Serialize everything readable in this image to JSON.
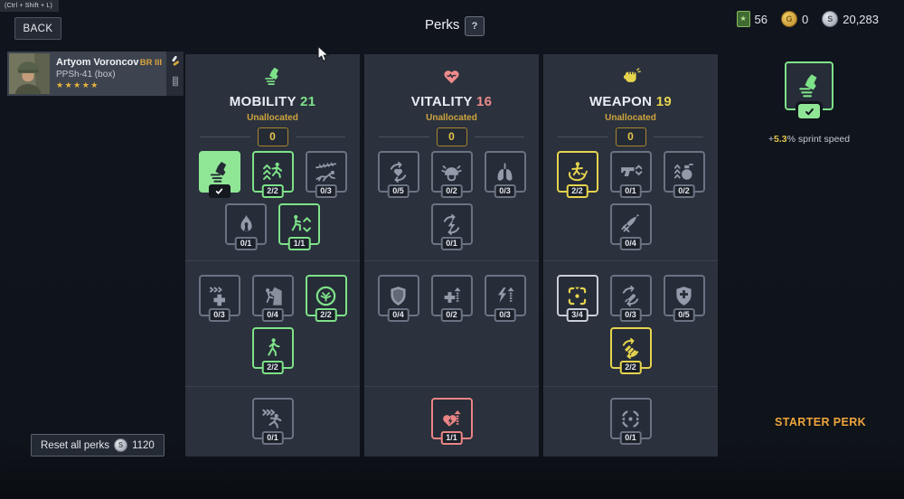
{
  "hotkey_hint": "(Ctrl + Shift + L)",
  "header": {
    "back_label": "BACK",
    "title": "Perks",
    "help_label": "?"
  },
  "currencies": [
    {
      "name": "supply-ticket",
      "symbol": "★",
      "value": "56"
    },
    {
      "name": "gold-coin",
      "symbol": "G",
      "value": "0"
    },
    {
      "name": "silver-coin",
      "symbol": "S",
      "value": "20,283"
    }
  ],
  "character": {
    "name": "Artyom Voroncov",
    "rank": "BR III",
    "weapon": "PPSh-41 (box)",
    "stars": "★★★★★"
  },
  "columns": [
    {
      "key": "mobility",
      "title": "MOBILITY",
      "points": "21",
      "accent": "#7ee289",
      "icon": "sprint-boot-icon",
      "unallocated_label": "Unallocated",
      "unallocated_value": "0",
      "tiers": [
        {
          "rows": [
            [
              {
                "icon": "sprint-boot-icon",
                "state": "starter",
                "badge": "check"
              },
              {
                "icon": "jump-height-icon",
                "state": "green",
                "badge": "2/2"
              },
              {
                "icon": "crawl-speed-icon",
                "state": "gray",
                "badge": "0/3"
              }
            ],
            [
              {
                "icon": "fire-resist-icon",
                "state": "gray",
                "badge": "0/1"
              },
              {
                "icon": "crouch-speed-icon",
                "state": "green",
                "badge": "1/1"
              }
            ]
          ]
        },
        {
          "rows": [
            [
              {
                "icon": "heal-move-icon",
                "state": "gray",
                "badge": "0/3"
              },
              {
                "icon": "climb-icon",
                "state": "gray",
                "badge": "0/4"
              },
              {
                "icon": "camo-icon",
                "state": "green",
                "badge": "2/2"
              }
            ],
            [
              {
                "icon": "walk-speed-icon",
                "state": "green",
                "badge": "2/2"
              }
            ]
          ]
        },
        {
          "rows": [
            [
              {
                "icon": "sprint-burst-icon",
                "state": "gray",
                "badge": "0/1"
              }
            ]
          ]
        }
      ]
    },
    {
      "key": "vitality",
      "title": "VITALITY",
      "points": "16",
      "accent": "#ee8b8b",
      "icon": "heart-pulse-icon",
      "unallocated_label": "Unallocated",
      "unallocated_value": "0",
      "tiers": [
        {
          "rows": [
            [
              {
                "icon": "heart-regen-icon",
                "state": "gray",
                "badge": "0/5"
              },
              {
                "icon": "helmet-protection-icon",
                "state": "gray",
                "badge": "0/2"
              },
              {
                "icon": "lungs-icon",
                "state": "gray",
                "badge": "0/3"
              }
            ],
            [
              {
                "icon": "stamina-regen-icon",
                "state": "gray",
                "badge": "0/1"
              }
            ]
          ]
        },
        {
          "rows": [
            [
              {
                "icon": "armor-shield-icon",
                "state": "gray",
                "badge": "0/4"
              },
              {
                "icon": "health-up-icon",
                "state": "gray",
                "badge": "0/2"
              },
              {
                "icon": "stamina-up-icon",
                "state": "gray",
                "badge": "0/3"
              }
            ]
          ]
        },
        {
          "rows": [
            [
              {
                "icon": "heart-boost-icon",
                "state": "pink",
                "badge": "1/1"
              }
            ]
          ]
        }
      ]
    },
    {
      "key": "weapon",
      "title": "WEAPON",
      "points": "19",
      "accent": "#e6d44e",
      "icon": "fist-icon",
      "unallocated_label": "Unallocated",
      "unallocated_value": "0",
      "tiers": [
        {
          "rows": [
            [
              {
                "icon": "aim-turn-icon",
                "state": "yellow",
                "badge": "2/2"
              },
              {
                "icon": "pistol-handling-icon",
                "state": "gray",
                "badge": "0/1"
              },
              {
                "icon": "grenade-throw-icon",
                "state": "gray",
                "badge": "0/2"
              }
            ],
            [
              {
                "icon": "knife-damage-icon",
                "state": "gray",
                "badge": "0/4"
              }
            ]
          ]
        },
        {
          "rows": [
            [
              {
                "icon": "reticle-control-icon",
                "state": "partial",
                "badge": "3/4"
              },
              {
                "icon": "bullet-speed-icon",
                "state": "gray",
                "badge": "0/3"
              },
              {
                "icon": "armor-plus-icon",
                "state": "gray",
                "badge": "0/5"
              }
            ],
            [
              {
                "icon": "reload-speed-icon",
                "state": "yellow",
                "badge": "2/2"
              }
            ]
          ]
        },
        {
          "rows": [
            [
              {
                "icon": "aim-focus-icon",
                "state": "gray",
                "badge": "0/1"
              }
            ]
          ]
        }
      ]
    }
  ],
  "starter_perk": {
    "icon": "sprint-boot-icon",
    "bonus_prefix": "+",
    "bonus_value": "5.3",
    "bonus_suffix": "% sprint speed",
    "label": "STARTER PERK"
  },
  "footer": {
    "reset_label": "Reset all perks",
    "reset_cost": "1120"
  }
}
